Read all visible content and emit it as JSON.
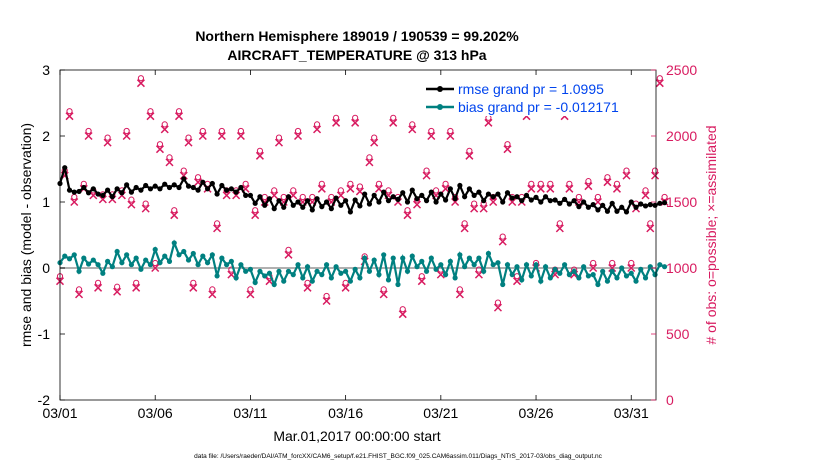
{
  "colors": {
    "rmse": "#000000",
    "bias": "#008080",
    "obs": "#d81b60",
    "legend_text": "#0044ee",
    "zero_line": "#b0b0b0"
  },
  "chart_data": {
    "type": "line",
    "title_line1": "Northern Hemisphere 189019 / 190539 = 99.202%",
    "title_line2": "AIRCRAFT_TEMPERATURE @ 313 hPa",
    "xlabel": "Mar.01,2017 00:00:00 start",
    "ylabel_left": "rmse and bias (model - observation)",
    "ylabel_right": "# of obs: o=possible; ×=assimilated",
    "footer": "data file: /Users/raeder/DAI/ATM_forcXX/CAM6_setup/f.e21.FHIST_BGC.f09_025.CAM6assim.011/Diags_NTrS_2017-03/obs_diag_output.nc",
    "xlim": [
      1,
      32.3
    ],
    "ylim_left": [
      -2,
      3
    ],
    "ylim_right": [
      0,
      2500
    ],
    "x_ticks": [
      1,
      6,
      11,
      16,
      21,
      26,
      31
    ],
    "x_tick_labels": [
      "03/01",
      "03/06",
      "03/11",
      "03/16",
      "03/21",
      "03/26",
      "03/31"
    ],
    "y_ticks_left": [
      -2,
      -1,
      0,
      1,
      2,
      3
    ],
    "y_ticks_right": [
      0,
      500,
      1000,
      1500,
      2000,
      2500
    ],
    "legend": [
      {
        "name": "rmse",
        "label": "rmse grand pr = 1.0995"
      },
      {
        "name": "bias",
        "label": "bias grand pr = -0.012171"
      }
    ],
    "series": [
      {
        "name": "rmse",
        "axis": "left",
        "values_per_day": [
          [
            1.28,
            1.52,
            1.18,
            1.15
          ],
          [
            1.16,
            1.22,
            1.14,
            1.2
          ],
          [
            1.12,
            1.1,
            1.18,
            1.08
          ],
          [
            1.2,
            1.14,
            1.26,
            1.15
          ],
          [
            1.22,
            1.18,
            1.25,
            1.2
          ],
          [
            1.24,
            1.2,
            1.27,
            1.22
          ],
          [
            1.26,
            1.22,
            1.35,
            1.24
          ],
          [
            1.22,
            1.18,
            1.3,
            1.2
          ],
          [
            1.28,
            1.12,
            1.25,
            1.18
          ],
          [
            1.2,
            1.15,
            1.22,
            1.1
          ],
          [
            1.1,
            0.98,
            1.08,
            0.95
          ],
          [
            1.05,
            0.9,
            1.02,
            0.92
          ],
          [
            1.08,
            0.95,
            1.0,
            0.92
          ],
          [
            1.02,
            0.88,
            1.05,
            0.93
          ],
          [
            1.0,
            0.9,
            1.06,
            0.95
          ],
          [
            1.02,
            0.85,
            1.03,
            0.94
          ],
          [
            1.12,
            0.97,
            1.1,
            1.0
          ],
          [
            1.15,
            1.02,
            1.08,
            1.04
          ],
          [
            1.14,
            1.0,
            1.18,
            1.05
          ],
          [
            1.1,
            1.02,
            1.15,
            1.0
          ],
          [
            1.12,
            1.03,
            1.2,
            1.05
          ],
          [
            1.25,
            1.08,
            1.2,
            1.1
          ],
          [
            1.15,
            1.02,
            1.12,
            1.08
          ],
          [
            1.12,
            1.0,
            1.14,
            1.06
          ],
          [
            1.08,
            1.02,
            1.1,
            1.03
          ],
          [
            1.07,
            1.0,
            1.08,
            1.02
          ],
          [
            1.03,
            0.98,
            1.04,
            0.97
          ],
          [
            1.02,
            0.93,
            1.0,
            0.92
          ],
          [
            0.96,
            0.88,
            0.95,
            0.86
          ],
          [
            0.98,
            0.86,
            0.92,
            0.85
          ],
          [
            1.0,
            0.92,
            0.97,
            0.94
          ],
          [
            0.96,
            0.95,
            0.98,
            0.99
          ]
        ]
      },
      {
        "name": "bias",
        "axis": "left",
        "values_per_day": [
          [
            0.08,
            0.18,
            0.14,
            0.2
          ],
          [
            -0.05,
            0.15,
            0.06,
            0.12
          ],
          [
            0.05,
            -0.08,
            0.1,
            0.02
          ],
          [
            0.25,
            0.08,
            0.2,
            0.05
          ],
          [
            0.15,
            -0.02,
            0.12,
            0.05
          ],
          [
            0.28,
            0.08,
            0.18,
            0.1
          ],
          [
            0.38,
            0.2,
            0.25,
            0.12
          ],
          [
            0.22,
            0.05,
            0.18,
            0.08
          ],
          [
            0.2,
            -0.12,
            0.15,
            0.05
          ],
          [
            0.1,
            -0.15,
            0.05,
            -0.05
          ],
          [
            -0.02,
            -0.22,
            -0.05,
            -0.12
          ],
          [
            -0.08,
            -0.25,
            -0.05,
            -0.2
          ],
          [
            -0.05,
            -0.1,
            0.05,
            -0.15
          ],
          [
            0.02,
            -0.2,
            -0.05,
            -0.1
          ],
          [
            0.05,
            -0.15,
            0.02,
            -0.08
          ],
          [
            -0.05,
            -0.2,
            -0.02,
            -0.15
          ],
          [
            0.15,
            -0.05,
            0.12,
            -0.1
          ],
          [
            0.2,
            -0.18,
            0.15,
            -0.25
          ],
          [
            0.15,
            -0.05,
            0.18,
            0.02
          ],
          [
            0.1,
            -0.05,
            0.15,
            -0.02
          ],
          [
            0.05,
            -0.1,
            0.1,
            -0.15
          ],
          [
            0.2,
            0.02,
            0.15,
            0.05
          ],
          [
            0.15,
            -0.05,
            0.22,
            0.05
          ],
          [
            0.08,
            -0.25,
            0.05,
            -0.1
          ],
          [
            0.02,
            -0.18,
            0.05,
            -0.12
          ],
          [
            0.05,
            -0.2,
            0.02,
            -0.15
          ],
          [
            -0.02,
            -0.08,
            0.05,
            -0.1
          ],
          [
            -0.05,
            -0.15,
            0.02,
            -0.12
          ],
          [
            -0.1,
            -0.25,
            -0.05,
            -0.2
          ],
          [
            -0.05,
            -0.15,
            0.0,
            -0.12
          ],
          [
            -0.08,
            -0.2,
            -0.02,
            -0.15
          ],
          [
            0.02,
            -0.1,
            0.05,
            0.02
          ]
        ]
      },
      {
        "name": "obs_possible",
        "axis": "right",
        "values_per_day": [
          [
            900,
            1700,
            2150,
            1500
          ],
          [
            800,
            1600,
            2000,
            1550
          ],
          [
            850,
            1520,
            1950,
            1520
          ],
          [
            820,
            1550,
            2000,
            1480
          ],
          [
            850,
            2400,
            1450,
            2150
          ],
          [
            1000,
            1900,
            2050,
            1800
          ],
          [
            1400,
            2150,
            1700,
            1950
          ],
          [
            850,
            1650,
            2000,
            1600
          ],
          [
            800,
            1300,
            2000,
            1550
          ],
          [
            950,
            1550,
            2000,
            1600
          ],
          [
            800,
            1400,
            1850,
            1500
          ],
          [
            900,
            1550,
            1950,
            1500
          ],
          [
            1100,
            1550,
            2000,
            1500
          ],
          [
            850,
            1500,
            2050,
            1600
          ],
          [
            750,
            1500,
            2100,
            1550
          ],
          [
            850,
            1600,
            2100,
            1580
          ],
          [
            1050,
            1800,
            1950,
            1600
          ],
          [
            800,
            1550,
            2100,
            1500
          ],
          [
            650,
            1400,
            2050,
            1480
          ],
          [
            900,
            1700,
            2000,
            1550
          ],
          [
            950,
            1600,
            2000,
            1500
          ],
          [
            800,
            1300,
            1850,
            1450
          ],
          [
            950,
            1450,
            2100,
            1500
          ],
          [
            700,
            1200,
            1900,
            1500
          ],
          [
            900,
            1500,
            2150,
            1600
          ],
          [
            1000,
            1600,
            2300,
            1600
          ],
          [
            950,
            1300,
            2150,
            1600
          ],
          [
            950,
            1500,
            2300,
            1620
          ],
          [
            1000,
            1500,
            2200,
            1650
          ],
          [
            1000,
            1600,
            2200,
            1700
          ],
          [
            1000,
            1450,
            2200,
            1550
          ],
          [
            1300,
            1700,
            2400,
            1500
          ]
        ]
      }
    ]
  }
}
